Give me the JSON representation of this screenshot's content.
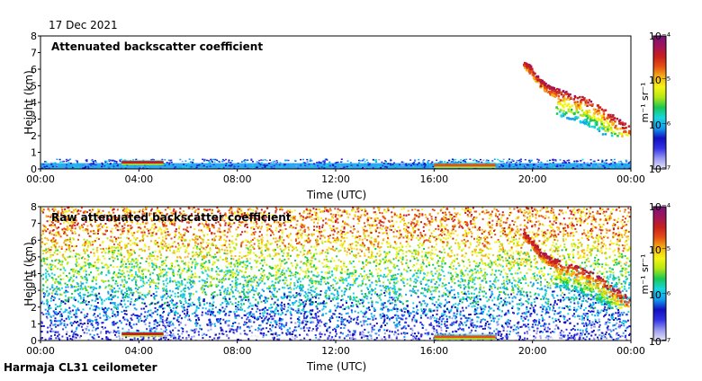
{
  "date_label": "17 Dec 2021",
  "footer_label": "Harmaja CL31 ceilometer",
  "colors": {
    "gradient": [
      "#e8e8f8",
      "#9b9bf0",
      "#3333e6",
      "#1010c0",
      "#14a0f0",
      "#16d6e0",
      "#19c853",
      "#b4e614",
      "#f5f514",
      "#f5b414",
      "#e65014",
      "#c81e1e",
      "#a0145a",
      "#781478"
    ]
  },
  "chart_data": [
    {
      "type": "heatmap",
      "title": "Attenuated backscatter coefficient",
      "xlabel": "Time (UTC)",
      "ylabel": "Height (km)",
      "xlim": [
        0,
        24
      ],
      "ylim": [
        0,
        8
      ],
      "x_ticks": [
        "00:00",
        "04:00",
        "08:00",
        "12:00",
        "16:00",
        "20:00",
        "00:00"
      ],
      "y_ticks": [
        "0",
        "1",
        "2",
        "3",
        "4",
        "5",
        "6",
        "7",
        "8"
      ],
      "colorbar": {
        "label": "m⁻¹ sr⁻¹",
        "scale": "log",
        "range": [
          1e-07,
          0.0001
        ],
        "ticks": [
          "10⁻⁴",
          "10⁻⁵",
          "10⁻⁶",
          "10⁻⁷"
        ]
      },
      "features": [
        {
          "name": "boundary layer",
          "t0": 0,
          "t1": 24,
          "h0": 0,
          "h1": 0.35,
          "level": 0.32
        },
        {
          "name": "low cloud",
          "t0": 3.3,
          "t1": 5.0,
          "h0": 0.25,
          "h1": 0.55,
          "level": 0.82
        },
        {
          "name": "low cloud",
          "t0": 16.0,
          "t1": 18.5,
          "h0": 0.05,
          "h1": 0.4,
          "level": 0.8
        },
        {
          "name": "high cloud",
          "t0": 19.6,
          "t1": 24,
          "h0": 2.0,
          "h1": 6.6,
          "level": 0.9
        }
      ]
    },
    {
      "type": "heatmap",
      "title": "Raw attenuated backscatter coefficient",
      "xlabel": "Time (UTC)",
      "ylabel": "Height (km)",
      "xlim": [
        0,
        24
      ],
      "ylim": [
        0,
        8
      ],
      "x_ticks": [
        "00:00",
        "04:00",
        "08:00",
        "12:00",
        "16:00",
        "20:00",
        "00:00"
      ],
      "y_ticks": [
        "0",
        "1",
        "2",
        "3",
        "4",
        "5",
        "6",
        "7",
        "8"
      ],
      "colorbar": {
        "label": "m⁻¹ sr⁻¹",
        "scale": "log",
        "range": [
          1e-07,
          0.0001
        ],
        "ticks": [
          "10⁻⁴",
          "10⁻⁵",
          "10⁻⁶",
          "10⁻⁷"
        ]
      },
      "features": [
        {
          "name": "noise field",
          "t0": 0,
          "t1": 24,
          "h0": 0,
          "h1": 8,
          "level": 0.45
        },
        {
          "name": "low cloud",
          "t0": 3.3,
          "t1": 5.0,
          "h0": 0.25,
          "h1": 0.55,
          "level": 0.82
        },
        {
          "name": "low cloud",
          "t0": 16.0,
          "t1": 18.5,
          "h0": 0.05,
          "h1": 0.4,
          "level": 0.8
        },
        {
          "name": "high cloud",
          "t0": 19.6,
          "t1": 24,
          "h0": 2.0,
          "h1": 6.6,
          "level": 0.9
        }
      ]
    }
  ]
}
